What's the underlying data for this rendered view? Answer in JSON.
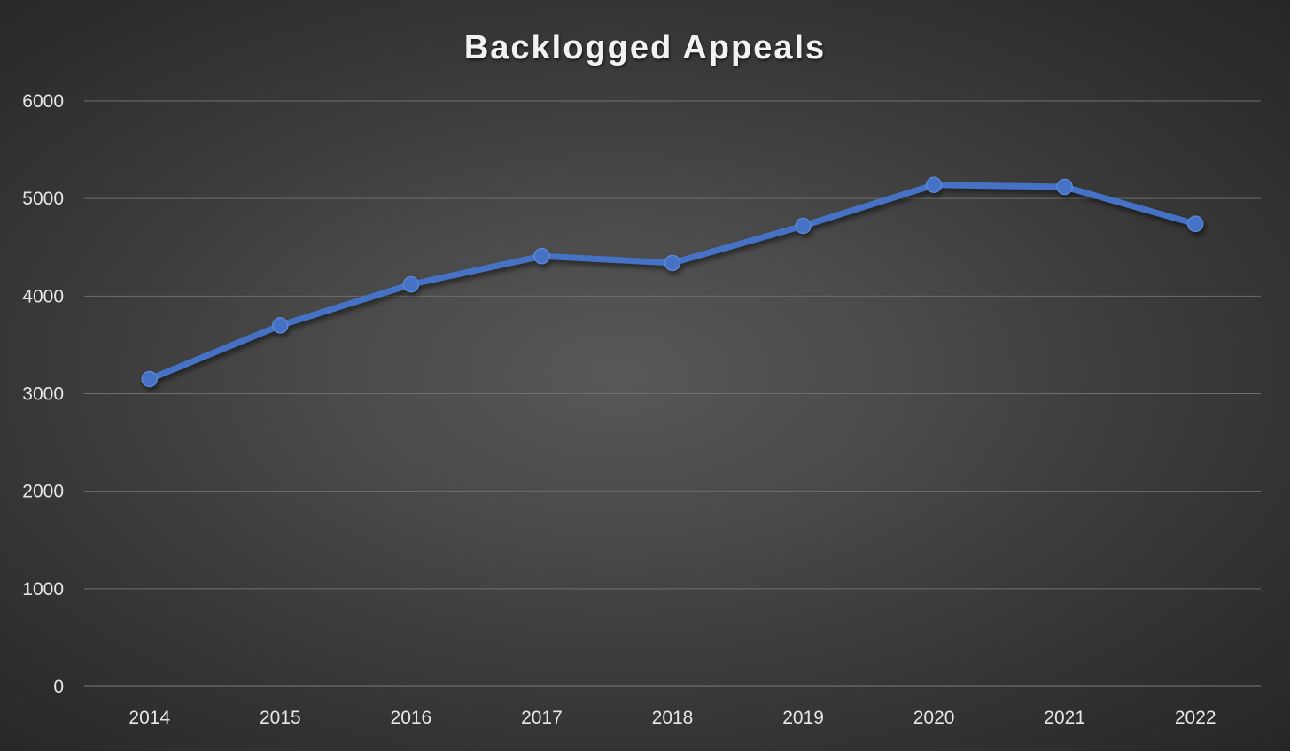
{
  "chart_data": {
    "type": "line",
    "title": "Backlogged Appeals",
    "xlabel": "",
    "ylabel": "",
    "categories": [
      "2014",
      "2015",
      "2016",
      "2017",
      "2018",
      "2019",
      "2020",
      "2021",
      "2022"
    ],
    "series": [
      {
        "values": [
          3150,
          3700,
          4120,
          4410,
          4340,
          4720,
          5140,
          5120,
          4740
        ],
        "color": "#4472c4"
      }
    ],
    "ylim": [
      0,
      6000
    ],
    "yticks": [
      "0",
      "1000",
      "2000",
      "3000",
      "4000",
      "5000",
      "6000"
    ],
    "grid": true,
    "legend": "none",
    "marker": "circle"
  }
}
